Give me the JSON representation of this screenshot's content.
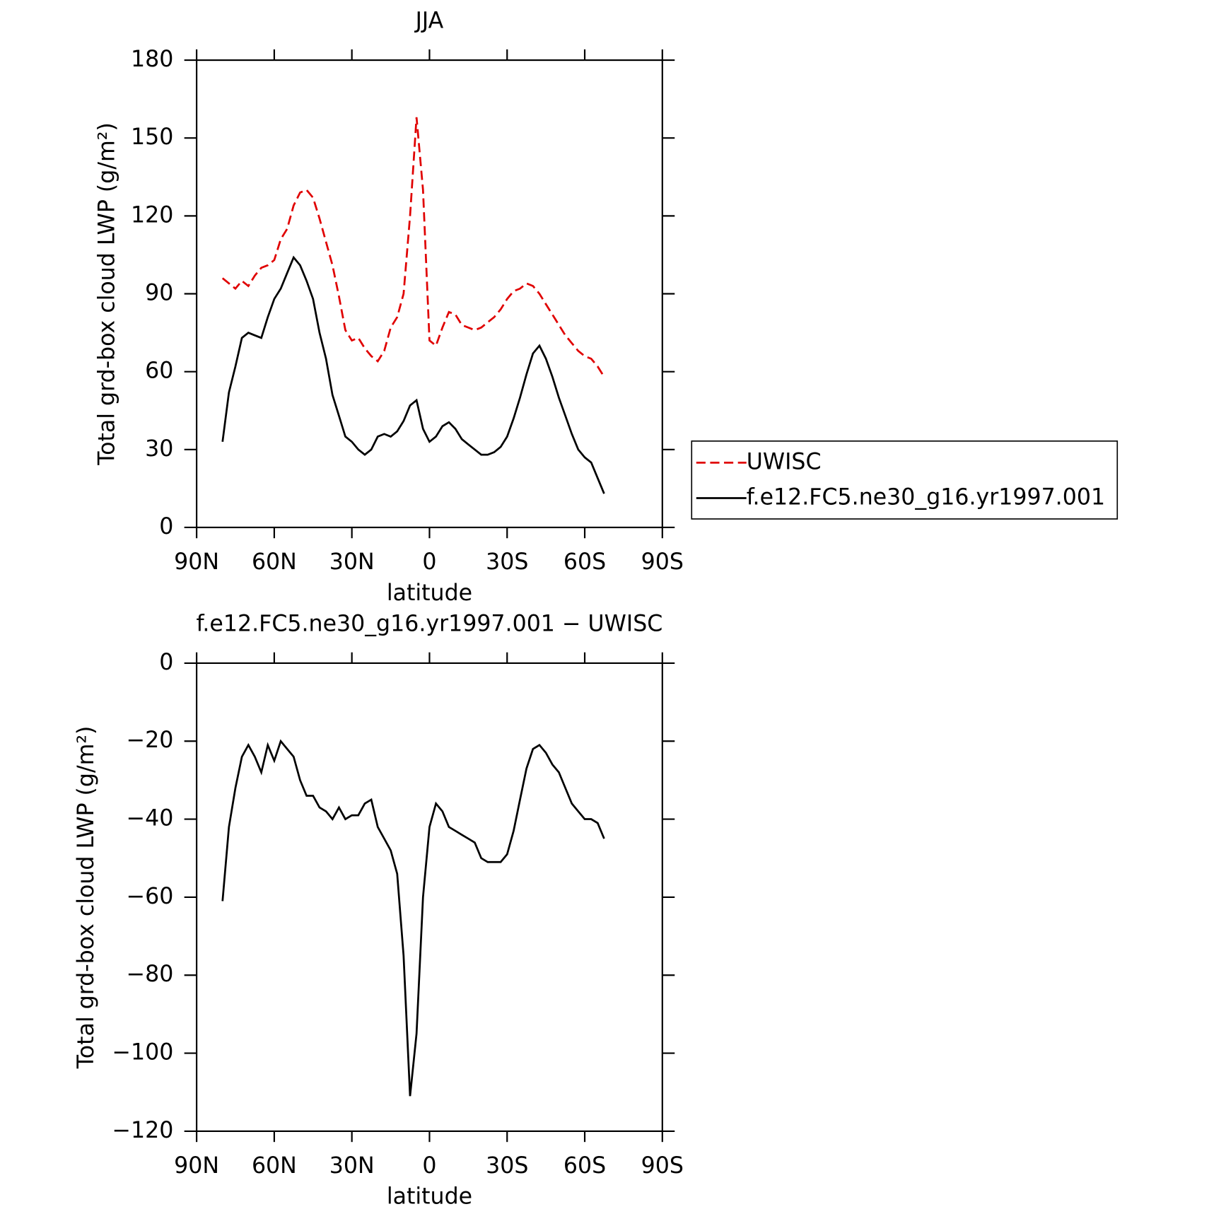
{
  "chart_data": [
    {
      "type": "line",
      "title": "JJA",
      "x_label": "latitude",
      "y_label": "Total grd-box cloud LWP (g/m²)",
      "x": [
        80,
        77.5,
        75,
        72.5,
        70,
        67.5,
        65,
        62.5,
        60,
        57.5,
        55,
        52.5,
        50,
        47.5,
        45,
        42.5,
        40,
        37.5,
        35,
        32.5,
        30,
        27.5,
        25,
        22.5,
        20,
        17.5,
        15,
        12.5,
        10,
        7.5,
        5,
        2.5,
        0,
        -2.5,
        -5,
        -7.5,
        -10,
        -12.5,
        -15,
        -17.5,
        -20,
        -22.5,
        -25,
        -27.5,
        -30,
        -32.5,
        -35,
        -37.5,
        -40,
        -42.5,
        -45,
        -47.5,
        -50,
        -52.5,
        -55,
        -57.5,
        -60,
        -62.5,
        -65,
        -67.5
      ],
      "series": [
        {
          "name": "UWISC",
          "color": "#e00000",
          "line_style": "dashed",
          "values": [
            96,
            94,
            92,
            95,
            93,
            97,
            100,
            101,
            103,
            111,
            115,
            124,
            129,
            130,
            127,
            119,
            110,
            101,
            89,
            76,
            72,
            73,
            69,
            66,
            64,
            68,
            77,
            81,
            90,
            120,
            158,
            130,
            72,
            70,
            77,
            83,
            82,
            78,
            77,
            76,
            77,
            79,
            81,
            84,
            88,
            91,
            92,
            94,
            93,
            90,
            86,
            82,
            78,
            74,
            71,
            68,
            66,
            65,
            62,
            58
          ]
        },
        {
          "name": "f.e12.FC5.ne30_g16.yr1997.001",
          "color": "#000000",
          "line_style": "solid",
          "values": [
            33,
            52,
            62,
            73,
            75,
            74,
            73,
            81,
            88,
            92,
            98,
            104,
            101,
            95,
            88,
            75,
            65,
            51,
            43,
            35,
            33,
            30,
            28,
            30,
            35,
            36,
            35,
            37,
            41,
            47,
            49,
            38,
            33,
            35,
            39,
            40.5,
            38,
            34,
            32,
            30,
            28,
            28,
            29,
            31,
            35,
            42,
            50,
            59,
            67,
            70,
            65,
            58,
            50,
            43,
            36,
            30,
            27,
            25,
            19,
            13
          ]
        }
      ],
      "xlim": [
        90,
        -90
      ],
      "xticks": [
        {
          "value": 90,
          "label": "90N"
        },
        {
          "value": 60,
          "label": "60N"
        },
        {
          "value": 30,
          "label": "30N"
        },
        0,
        {
          "value": -30,
          "label": "30S"
        },
        {
          "value": -60,
          "label": "60S"
        },
        {
          "value": -90,
          "label": "90S"
        }
      ],
      "ylim": [
        0,
        180
      ],
      "yticks": [
        0,
        30,
        60,
        90,
        120,
        150,
        180
      ],
      "legend": "right"
    },
    {
      "type": "line",
      "title": "f.e12.FC5.ne30_g16.yr1997.001 − UWISC",
      "x_label": "latitude",
      "y_label": "Total grd-box cloud LWP (g/m²)",
      "x": [
        80,
        77.5,
        75,
        72.5,
        70,
        67.5,
        65,
        62.5,
        60,
        57.5,
        55,
        52.5,
        50,
        47.5,
        45,
        42.5,
        40,
        37.5,
        35,
        32.5,
        30,
        27.5,
        25,
        22.5,
        20,
        17.5,
        15,
        12.5,
        10,
        7.5,
        5,
        2.5,
        0,
        -2.5,
        -5,
        -7.5,
        -10,
        -12.5,
        -15,
        -17.5,
        -20,
        -22.5,
        -25,
        -27.5,
        -30,
        -32.5,
        -35,
        -37.5,
        -40,
        -42.5,
        -45,
        -47.5,
        -50,
        -52.5,
        -55,
        -57.5,
        -60,
        -62.5,
        -65,
        -67.5
      ],
      "series": [
        {
          "color": "#000000",
          "line_style": "solid",
          "values": [
            -61,
            -42,
            -32,
            -24,
            -21,
            -24,
            -28,
            -21,
            -25,
            -20,
            -22,
            -24,
            -30,
            -34,
            -34,
            -37,
            -38,
            -40,
            -37,
            -40,
            -39,
            -39,
            -36,
            -35,
            -42,
            -45,
            -48,
            -54,
            -75,
            -111,
            -95,
            -60,
            -42,
            -36,
            -38,
            -42,
            -43,
            -44,
            -45,
            -46,
            -50,
            -51,
            -51,
            -51,
            -49,
            -43,
            -35,
            -27,
            -22,
            -21,
            -23,
            -26,
            -28,
            -32,
            -36,
            -38,
            -40,
            -40,
            -41,
            -45
          ]
        }
      ],
      "xlim": [
        90,
        -90
      ],
      "xticks": [
        {
          "value": 90,
          "label": "90N"
        },
        {
          "value": 60,
          "label": "60N"
        },
        {
          "value": 30,
          "label": "30N"
        },
        0,
        {
          "value": -30,
          "label": "30S"
        },
        {
          "value": -60,
          "label": "60S"
        },
        {
          "value": -90,
          "label": "90S"
        }
      ],
      "ylim": [
        -120,
        0
      ],
      "yticks": [
        {
          "value": -120,
          "label": "−120"
        },
        {
          "value": -100,
          "label": "−100"
        },
        {
          "value": -80,
          "label": "−80"
        },
        {
          "value": -60,
          "label": "−60"
        },
        {
          "value": -40,
          "label": "−40"
        },
        {
          "value": -20,
          "label": "−20"
        },
        0
      ]
    }
  ]
}
